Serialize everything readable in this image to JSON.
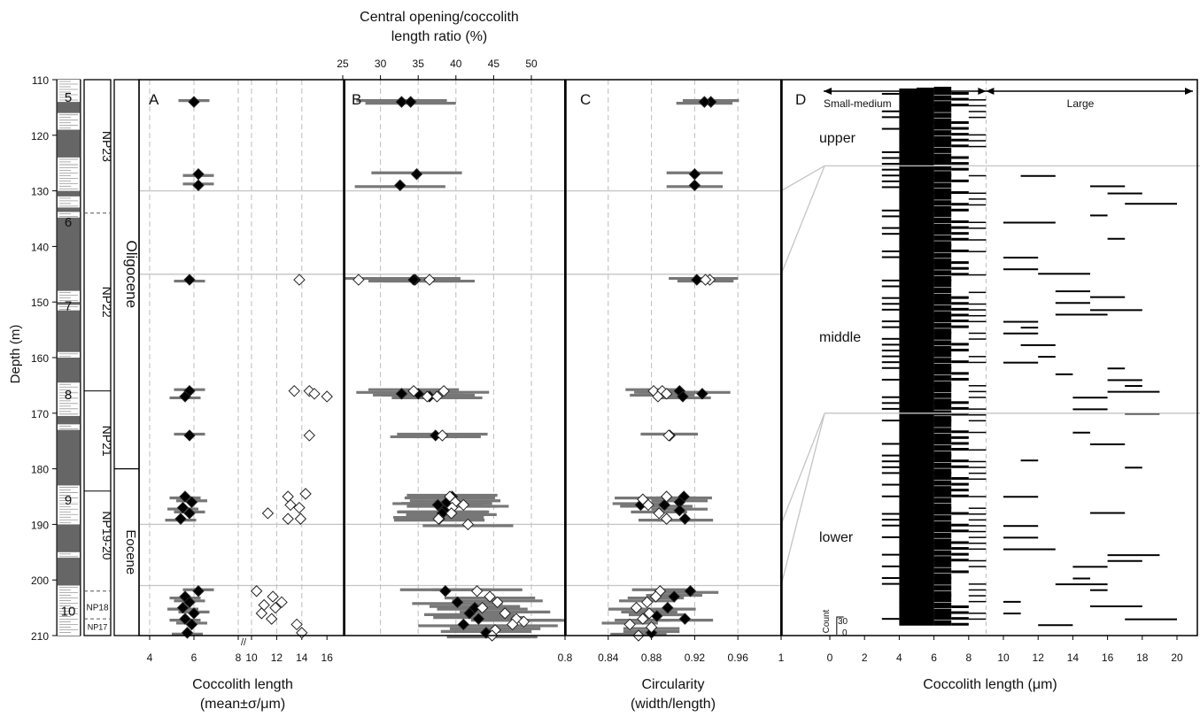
{
  "colors": {
    "black": "#000000",
    "bar": "#777777",
    "open": "#ffffff",
    "grid": "#bdbdbd",
    "strip": "#666666"
  },
  "depth_axis": {
    "label": "Depth (m)",
    "ticks": [
      110,
      120,
      130,
      140,
      150,
      160,
      170,
      180,
      190,
      200,
      210
    ]
  },
  "units": [
    "5",
    "6",
    "7",
    "8",
    "9",
    "10"
  ],
  "zones": [
    "NP23",
    "NP22",
    "NP21",
    "NP19-20",
    "NP18",
    "NP17"
  ],
  "epochs": [
    "Oligocene",
    "Eocene"
  ],
  "top_axis": {
    "title_line1": "Central opening/coccolith",
    "title_line2": "length ratio (%)",
    "ticks": [
      "25",
      "30",
      "35",
      "40",
      "45",
      "50"
    ]
  },
  "panels": {
    "a": "A",
    "b": "B",
    "c": "C",
    "d": "D"
  },
  "axis_a": {
    "label_line1": "Coccolith length",
    "label_line2": "(mean±σ/μm)",
    "ticks": [
      "4",
      "6",
      "8",
      "10",
      "12",
      "14",
      "16"
    ]
  },
  "axis_c": {
    "label_line1": "Circularity",
    "label_line2": "(width/length)",
    "ticks": [
      "0.8",
      "0.84",
      "0.88",
      "0.92",
      "0.96",
      "1"
    ]
  },
  "axis_d": {
    "label": "Coccolith length (μm)",
    "ticks": [
      "0",
      "2",
      "4",
      "6",
      "8",
      "10",
      "12",
      "14",
      "16",
      "18",
      "20"
    ]
  },
  "panel_d": {
    "small_medium": "Small-medium",
    "large": "Large",
    "upper": "upper",
    "middle": "middle",
    "lower": "lower",
    "count_label": "Count",
    "count_30": "30",
    "count_0": "0"
  },
  "chart_data": [
    {
      "type": "scatter",
      "panel": "A",
      "xlabel": "Coccolith length (mean±σ/μm)",
      "ylabel": "Depth (m)",
      "ylim": [
        110,
        210
      ],
      "series": [
        {
          "style": "filled",
          "points": [
            [
              6.0,
              114
            ],
            [
              6.2,
              127
            ],
            [
              6.2,
              129
            ],
            [
              5.8,
              146
            ],
            [
              5.8,
              166
            ],
            [
              5.6,
              167
            ],
            [
              5.8,
              174
            ],
            [
              5.6,
              185
            ],
            [
              5.9,
              186
            ],
            [
              5.5,
              187
            ],
            [
              5.8,
              188
            ],
            [
              5.4,
              189
            ],
            [
              6.2,
              202
            ],
            [
              5.6,
              203
            ],
            [
              5.8,
              204
            ],
            [
              5.5,
              205
            ],
            [
              6.0,
              206
            ],
            [
              5.6,
              207
            ],
            [
              5.9,
              208
            ],
            [
              5.7,
              209.5
            ]
          ]
        },
        {
          "style": "open",
          "points": [
            [
              13.8,
              146
            ],
            [
              13.4,
              166
            ],
            [
              14.6,
              166
            ],
            [
              15.0,
              166.5
            ],
            [
              16.0,
              167
            ],
            [
              14.6,
              174
            ],
            [
              14.3,
              184.5
            ],
            [
              12.9,
              185
            ],
            [
              13.1,
              186.5
            ],
            [
              13.8,
              187
            ],
            [
              11.3,
              188
            ],
            [
              12.9,
              189
            ],
            [
              13.9,
              189
            ],
            [
              10.4,
              202
            ],
            [
              11.7,
              203
            ],
            [
              12.4,
              204
            ],
            [
              11.0,
              204.5
            ],
            [
              11.9,
              205
            ],
            [
              10.8,
              206
            ],
            [
              11.6,
              207
            ],
            [
              13.6,
              208
            ],
            [
              14.0,
              209.5
            ]
          ]
        }
      ],
      "errorbar_sd": 0.7
    },
    {
      "type": "scatter",
      "panel": "B",
      "xlabel": "Central opening/coccolith length ratio (%)",
      "xlim": [
        25,
        53
      ],
      "ylabel": "Depth (m)",
      "series": [
        {
          "style": "filled",
          "points": [
            [
              32.8,
              114
            ],
            [
              34.0,
              114
            ],
            [
              34.8,
              127
            ],
            [
              32.6,
              129
            ],
            [
              34.6,
              146
            ],
            [
              34.4,
              146
            ],
            [
              32.8,
              166.5
            ],
            [
              35.0,
              166.5
            ],
            [
              36.5,
              167
            ],
            [
              37.3,
              174
            ],
            [
              39.5,
              185
            ],
            [
              38.8,
              186
            ],
            [
              37.6,
              186.5
            ],
            [
              38.4,
              187.5
            ],
            [
              38.2,
              188
            ],
            [
              37.8,
              189
            ],
            [
              38.6,
              202
            ],
            [
              40.2,
              204
            ],
            [
              42.5,
              205
            ],
            [
              41.8,
              206
            ],
            [
              43.0,
              207
            ],
            [
              41.0,
              208
            ],
            [
              44.0,
              209.5
            ]
          ]
        },
        {
          "style": "open",
          "points": [
            [
              27.1,
              146
            ],
            [
              36.5,
              146
            ],
            [
              34.4,
              166
            ],
            [
              38.4,
              166
            ],
            [
              36.2,
              167
            ],
            [
              37.5,
              167
            ],
            [
              38.2,
              174
            ],
            [
              39.2,
              185
            ],
            [
              39.9,
              186
            ],
            [
              41.0,
              186.5
            ],
            [
              39.5,
              187
            ],
            [
              39.4,
              188
            ],
            [
              37.7,
              189
            ],
            [
              41.6,
              190
            ],
            [
              42.8,
              202
            ],
            [
              44.5,
              203
            ],
            [
              45.5,
              204
            ],
            [
              43.5,
              205
            ],
            [
              46.5,
              206
            ],
            [
              48.0,
              207
            ],
            [
              49.0,
              207.5
            ],
            [
              47.5,
              208
            ],
            [
              45.2,
              209
            ],
            [
              44.8,
              210
            ]
          ]
        }
      ],
      "errorbar_sd": 6
    },
    {
      "type": "scatter",
      "panel": "C",
      "xlabel": "Circularity (width/length)",
      "xlim": [
        0.8,
        1.0
      ],
      "ylabel": "Depth (m)",
      "series": [
        {
          "style": "filled",
          "points": [
            [
              0.935,
              114
            ],
            [
              0.929,
              114
            ],
            [
              0.92,
              127
            ],
            [
              0.92,
              129
            ],
            [
              0.922,
              146
            ],
            [
              0.906,
              166
            ],
            [
              0.927,
              166.5
            ],
            [
              0.909,
              167
            ],
            [
              0.897,
              174
            ],
            [
              0.91,
              185
            ],
            [
              0.906,
              186
            ],
            [
              0.892,
              186.5
            ],
            [
              0.906,
              187.5
            ],
            [
              0.911,
              189
            ],
            [
              0.87,
              186.5
            ],
            [
              0.916,
              202
            ],
            [
              0.901,
              203
            ],
            [
              0.895,
              205
            ],
            [
              0.885,
              206.5
            ],
            [
              0.911,
              207
            ],
            [
              0.88,
              209.5
            ]
          ]
        },
        {
          "style": "open",
          "points": [
            [
              0.934,
              146
            ],
            [
              0.93,
              146
            ],
            [
              0.882,
              166
            ],
            [
              0.89,
              166
            ],
            [
              0.886,
              167
            ],
            [
              0.894,
              166.5
            ],
            [
              0.896,
              174
            ],
            [
              0.894,
              185
            ],
            [
              0.872,
              185.5
            ],
            [
              0.877,
              186.5
            ],
            [
              0.887,
              188
            ],
            [
              0.894,
              189
            ],
            [
              0.888,
              202
            ],
            [
              0.884,
              203
            ],
            [
              0.876,
              204
            ],
            [
              0.866,
              205
            ],
            [
              0.878,
              206
            ],
            [
              0.872,
              207
            ],
            [
              0.86,
              208
            ],
            [
              0.88,
              208.5
            ],
            [
              0.868,
              210
            ]
          ]
        }
      ],
      "errorbar_sd": 0.026
    },
    {
      "type": "bar",
      "panel": "D",
      "xlabel": "Coccolith length (μm)",
      "xlim": [
        0,
        21
      ],
      "groups": [
        "upper",
        "middle",
        "lower"
      ],
      "description_levels": "Small-medium (<9 μm), Large (>9 μm)"
    }
  ]
}
